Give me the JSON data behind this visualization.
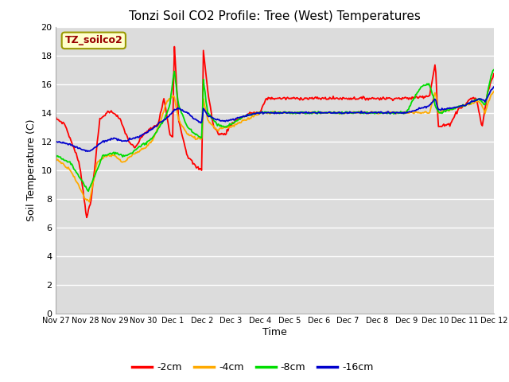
{
  "title": "Tonzi Soil CO2 Profile: Tree (West) Temperatures",
  "xlabel": "Time",
  "ylabel": "Soil Temperature (C)",
  "ylim": [
    0,
    20
  ],
  "yticks": [
    0,
    2,
    4,
    6,
    8,
    10,
    12,
    14,
    16,
    18,
    20
  ],
  "bg_color": "#dcdcdc",
  "fig_color": "#ffffff",
  "annotation_text": "TZ_soilco2",
  "annotation_bg": "#ffffcc",
  "annotation_border": "#999900",
  "xtick_labels": [
    "Nov 27",
    "Nov 28",
    "Nov 29",
    "Nov 30",
    "Dec 1",
    "Dec 2",
    "Dec 3",
    "Dec 4",
    "Dec 5",
    "Dec 6",
    "Dec 7",
    "Dec 8",
    "Dec 9",
    "Dec 10",
    "Dec 11",
    "Dec 12"
  ],
  "legend_items": [
    {
      "label": "-2cm",
      "color": "#ff0000"
    },
    {
      "label": "-4cm",
      "color": "#ffaa00"
    },
    {
      "label": "-8cm",
      "color": "#00dd00"
    },
    {
      "label": "-16cm",
      "color": "#0000cc"
    }
  ]
}
